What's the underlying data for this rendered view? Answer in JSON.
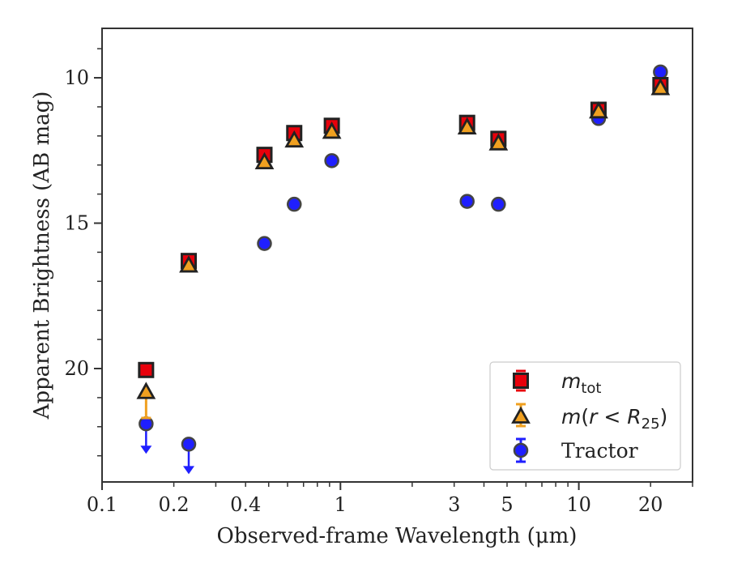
{
  "chart_data": {
    "type": "scatter",
    "xlabel": "Observed-frame Wavelength (μm)",
    "ylabel": "Apparent Brightness (AB mag)",
    "xscale": "log",
    "xlim": [
      0.1,
      30
    ],
    "ylim": [
      23.9,
      8.3
    ],
    "y_inverted": true,
    "x_ticks": [
      {
        "value": 0.1,
        "label": "0.1"
      },
      {
        "value": 0.2,
        "label": "0.2"
      },
      {
        "value": 0.4,
        "label": "0.4"
      },
      {
        "value": 1,
        "label": "1"
      },
      {
        "value": 3,
        "label": "3"
      },
      {
        "value": 5,
        "label": "5"
      },
      {
        "value": 10,
        "label": "10"
      },
      {
        "value": 20,
        "label": "20"
      }
    ],
    "y_ticks": [
      {
        "value": 10,
        "label": "10"
      },
      {
        "value": 15,
        "label": "15"
      },
      {
        "value": 20,
        "label": "20"
      }
    ],
    "legend_position": "lower-right",
    "series": [
      {
        "name": "m_tot",
        "marker": "square",
        "color": "#e8000b",
        "points": [
          {
            "x": 0.153,
            "y": 20.05
          },
          {
            "x": 0.231,
            "y": 16.3
          },
          {
            "x": 0.48,
            "y": 12.65
          },
          {
            "x": 0.64,
            "y": 11.9
          },
          {
            "x": 0.92,
            "y": 11.65
          },
          {
            "x": 3.4,
            "y": 11.55
          },
          {
            "x": 4.6,
            "y": 12.1
          },
          {
            "x": 12.1,
            "y": 11.1
          },
          {
            "x": 22.0,
            "y": 10.25
          }
        ]
      },
      {
        "name": "m(r < R_25)",
        "marker": "triangle",
        "color": "#f0a020",
        "points": [
          {
            "x": 0.153,
            "y": 20.8
          },
          {
            "x": 0.231,
            "y": 16.45
          },
          {
            "x": 0.48,
            "y": 12.9
          },
          {
            "x": 0.64,
            "y": 12.15
          },
          {
            "x": 0.92,
            "y": 11.85
          },
          {
            "x": 3.4,
            "y": 11.7
          },
          {
            "x": 4.6,
            "y": 12.25
          },
          {
            "x": 12.1,
            "y": 11.15
          },
          {
            "x": 22.0,
            "y": 10.35
          }
        ]
      },
      {
        "name": "Tractor",
        "marker": "circle",
        "color": "#1f1fff",
        "points": [
          {
            "x": 0.153,
            "y": 21.9,
            "upper_limit": true
          },
          {
            "x": 0.231,
            "y": 22.6,
            "upper_limit": true
          },
          {
            "x": 0.48,
            "y": 15.7
          },
          {
            "x": 0.64,
            "y": 14.35
          },
          {
            "x": 0.92,
            "y": 12.85
          },
          {
            "x": 3.4,
            "y": 14.25
          },
          {
            "x": 4.6,
            "y": 14.35
          },
          {
            "x": 12.1,
            "y": 11.4
          },
          {
            "x": 22.0,
            "y": 9.8
          }
        ]
      }
    ]
  }
}
